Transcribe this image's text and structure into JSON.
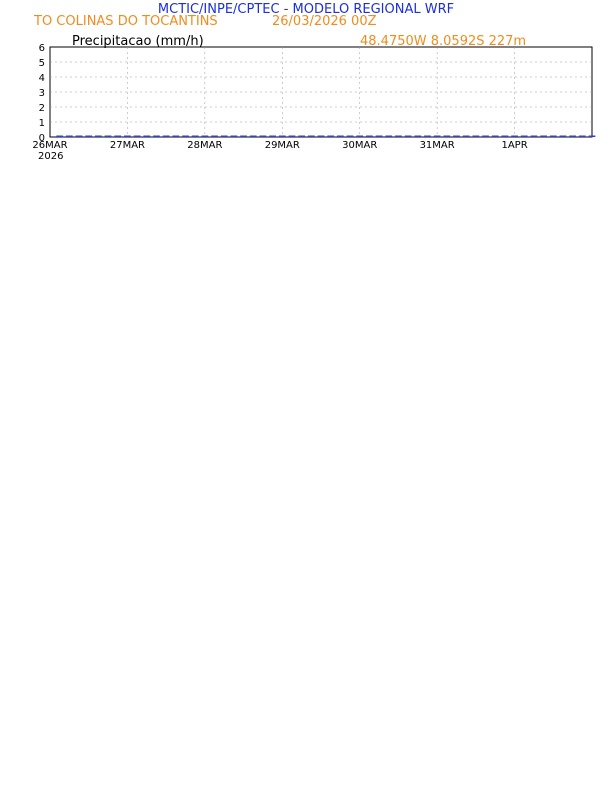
{
  "header": {
    "title": "MCTIC/INPE/CPTEC - MODELO REGIONAL WRF",
    "location": "TO COLINAS DO TOCANTINS",
    "run": "26/03/2026 00Z",
    "coords": "48.4750W 8.0592S 227m"
  },
  "colors": {
    "title": "#1c2fd8",
    "orange": "#f08c1e",
    "blue": "#2f3fe8",
    "cyan": "#22c2c8",
    "green": "#33cc22",
    "grid": "#9a9a9a"
  },
  "chart_data": [
    {
      "id": "precip",
      "type": "bar",
      "title": "Precipitacao (mm/h)",
      "ylim": [
        0,
        6
      ],
      "yticks": [
        "0",
        "1",
        "2",
        "3",
        "4",
        "5",
        "6"
      ],
      "xticks": [
        "26MAR",
        "27MAR",
        "28MAR",
        "29MAR",
        "30MAR",
        "31MAR",
        "1APR"
      ],
      "year_label": "2026",
      "hour_step": 3,
      "values": [
        {
          "h": 3,
          "v": 0.1
        },
        {
          "h": 6,
          "v": 0.1
        },
        {
          "h": 9,
          "v": 0.1
        },
        {
          "h": 12,
          "v": 0.1
        },
        {
          "h": 15,
          "v": 0.1
        },
        {
          "h": 18,
          "v": 0.1
        },
        {
          "h": 21,
          "v": 0.1
        },
        {
          "h": 24,
          "v": 0.1
        },
        {
          "h": 27,
          "v": 0.1
        },
        {
          "h": 30,
          "v": 0.1
        },
        {
          "h": 33,
          "v": 0.1
        },
        {
          "h": 36,
          "v": 0.1
        },
        {
          "h": 39,
          "v": 0.1
        },
        {
          "h": 42,
          "v": 0.1
        },
        {
          "h": 45,
          "v": 0.1
        },
        {
          "h": 48,
          "v": 0.1
        },
        {
          "h": 51,
          "v": 0.1
        },
        {
          "h": 54,
          "v": 0.1
        },
        {
          "h": 57,
          "v": 0.1
        },
        {
          "h": 60,
          "v": 0.1
        },
        {
          "h": 63,
          "v": 0.1
        },
        {
          "h": 66,
          "v": 0.1
        },
        {
          "h": 69,
          "v": 0.1
        },
        {
          "h": 72,
          "v": 0.1
        },
        {
          "h": 75,
          "v": 0.1
        },
        {
          "h": 78,
          "v": 0.1
        },
        {
          "h": 81,
          "v": 0.1
        },
        {
          "h": 84,
          "v": 0.1
        },
        {
          "h": 87,
          "v": 0.1
        },
        {
          "h": 90,
          "v": 0.1
        },
        {
          "h": 93,
          "v": 0.1
        },
        {
          "h": 96,
          "v": 0.1
        },
        {
          "h": 99,
          "v": 0.1
        },
        {
          "h": 102,
          "v": 0.1
        },
        {
          "h": 105,
          "v": 0.1
        },
        {
          "h": 108,
          "v": 0.1
        },
        {
          "h": 111,
          "v": 0.1
        },
        {
          "h": 114,
          "v": 0.1
        },
        {
          "h": 117,
          "v": 0.1
        },
        {
          "h": 120,
          "v": 0.1
        },
        {
          "h": 123,
          "v": 0.1
        },
        {
          "h": 126,
          "v": 0.1
        },
        {
          "h": 129,
          "v": 0.1
        },
        {
          "h": 132,
          "v": 0.1
        },
        {
          "h": 135,
          "v": 0.1
        },
        {
          "h": 138,
          "v": 0.1
        },
        {
          "h": 141,
          "v": 0.1
        },
        {
          "h": 144,
          "v": 0.1
        },
        {
          "h": 147,
          "v": 0.1
        },
        {
          "h": 150,
          "v": 0.1
        },
        {
          "h": 153,
          "v": 0.1
        },
        {
          "h": 156,
          "v": 0.1
        },
        {
          "h": 159,
          "v": 0.1
        },
        {
          "h": 162,
          "v": 0.1
        },
        {
          "h": 165,
          "v": 0.1
        },
        {
          "h": 168,
          "v": 0.1
        }
      ]
    }
  ]
}
